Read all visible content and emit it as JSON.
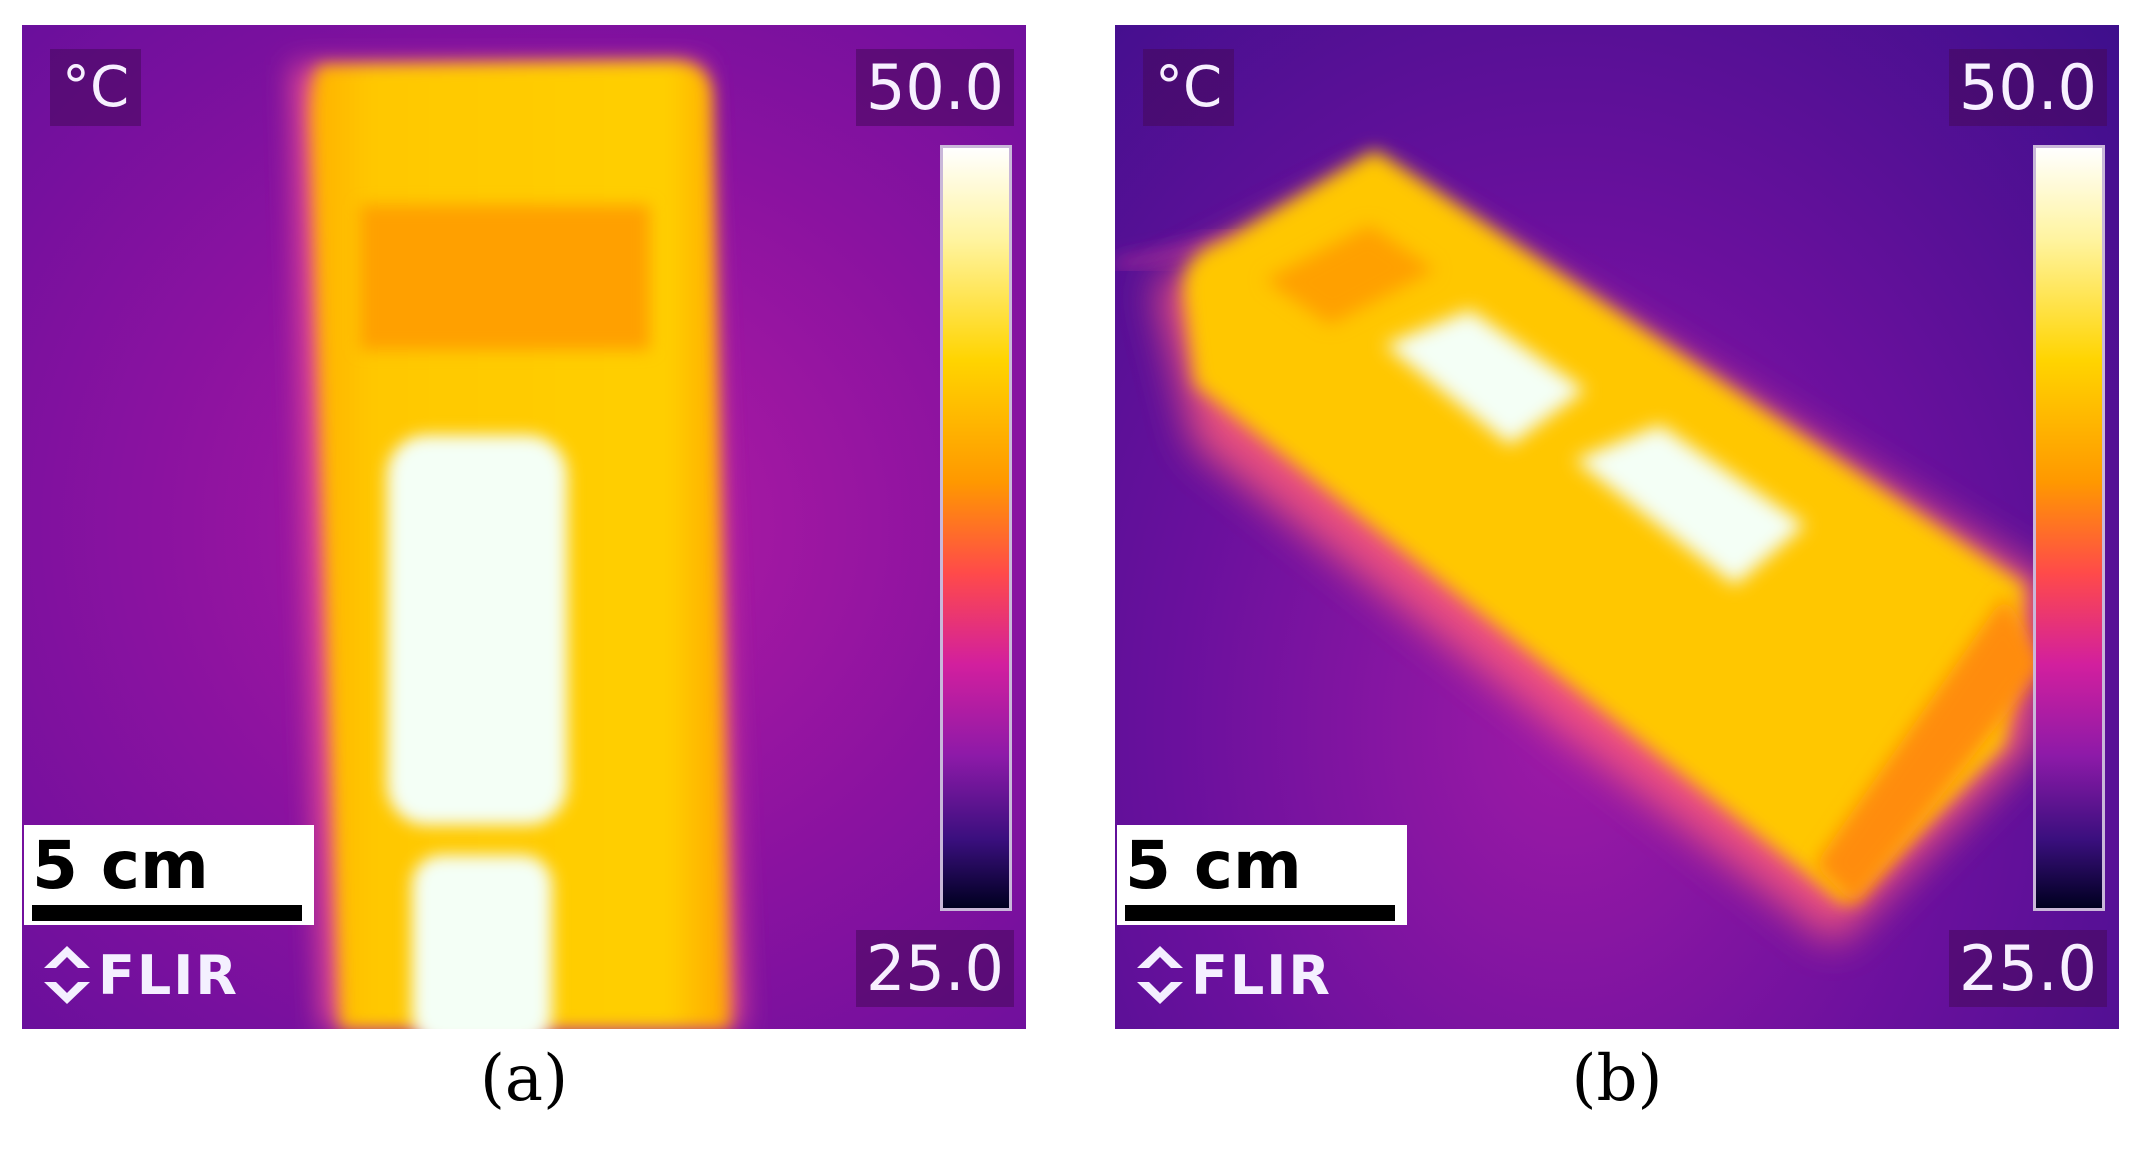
{
  "panels": [
    {
      "id": "a",
      "unit": "°C",
      "temp_max": "50.0",
      "temp_min": "25.0",
      "scale_label": "5 cm",
      "brand": "FLIR",
      "caption": "(a)"
    },
    {
      "id": "b",
      "unit": "°C",
      "temp_max": "50.0",
      "temp_min": "25.0",
      "scale_label": "5 cm",
      "brand": "FLIR",
      "caption": "(b)"
    }
  ],
  "colors": {
    "background_hot": "#b21ca3",
    "background_cool": "#6a0f9c",
    "device_body": "#ffc700",
    "hotspot": "#f4fff8",
    "cooler_patch": "#ffa200"
  }
}
